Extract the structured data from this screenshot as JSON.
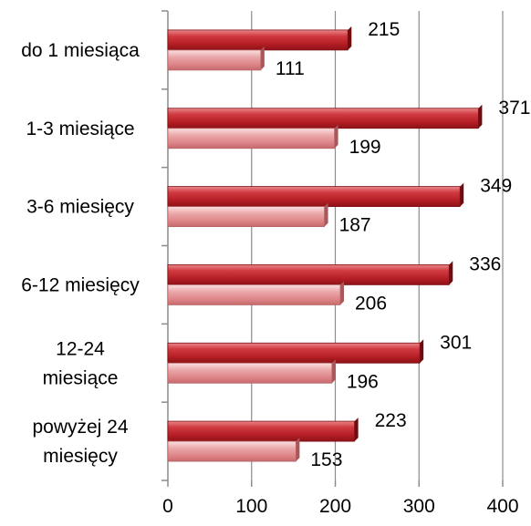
{
  "chart_data": {
    "type": "bar",
    "orientation": "horizontal",
    "categories": [
      [
        "do 1 miesiąca"
      ],
      [
        "1-3 miesiące"
      ],
      [
        "3-6 miesięcy"
      ],
      [
        "6-12 miesięcy"
      ],
      [
        "12-24",
        "miesiące"
      ],
      [
        "powyżej 24",
        "miesięcy"
      ]
    ],
    "series": [
      {
        "values": [
          215,
          371,
          349,
          336,
          301,
          223
        ],
        "color": "#c0262c"
      },
      {
        "values": [
          111,
          199,
          187,
          206,
          196,
          153
        ],
        "color": "#e39597"
      }
    ],
    "xlim": [
      0,
      400
    ],
    "xticks": [
      "0",
      "100",
      "200",
      "300",
      "400"
    ],
    "grid": true,
    "legend": "none",
    "title": "",
    "xlabel": "",
    "ylabel": ""
  }
}
